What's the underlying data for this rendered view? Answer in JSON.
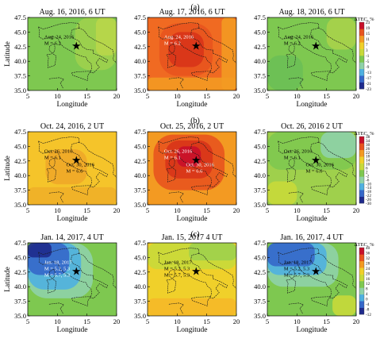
{
  "figure": {
    "rows": [
      {
        "label": "(a)",
        "colorbar": {
          "title": "ΔTEC, %",
          "ticks": [
            "23",
            "19",
            "15",
            "11",
            "7",
            "3",
            "-1",
            "-5",
            "-9",
            "-13",
            "-17",
            "-21",
            "-23"
          ],
          "min": -23,
          "max": 23,
          "colors": [
            "#1e2a8c",
            "#3567c9",
            "#4fb0e0",
            "#8fd2a8",
            "#7ec850",
            "#c8d93a",
            "#f0d02a",
            "#f39a22",
            "#e8541e",
            "#c8102a"
          ]
        },
        "panels": [
          {
            "title": "Aug. 16, 2016, 6 UT",
            "fill": "#7ec850",
            "regions": [
              {
                "color": "#9fd04c",
                "x0": 13,
                "x1": 20,
                "y0": 38.5,
                "y1": 47.5
              },
              {
                "color": "#b9d64a",
                "x0": 16.5,
                "x1": 20,
                "y0": 41,
                "y1": 47.5
              }
            ],
            "annotation": [
              "Aug. 24, 2016",
              "M = 6.2"
            ],
            "annotation_color": "#000000"
          },
          {
            "title": "Aug. 17, 2016, 6 UT",
            "fill": "#f06a22",
            "regions": [
              {
                "color": "#f39a22",
                "x0": 5,
                "x1": 20,
                "y0": 35,
                "y1": 37.2
              },
              {
                "color": "#f39a22",
                "x0": 17.5,
                "x1": 20,
                "y0": 35,
                "y1": 47.5
              },
              {
                "color": "#e8541e",
                "x0": 7,
                "x1": 16,
                "y0": 37.5,
                "y1": 46.5
              },
              {
                "color": "#d83418",
                "x0": 8.5,
                "x1": 14.5,
                "y0": 39,
                "y1": 45
              }
            ],
            "annotation": [
              "Aug. 24, 2016",
              "M = 6.2"
            ],
            "annotation_color": "#ffffff"
          },
          {
            "title": "Aug. 18, 2016, 6 UT",
            "fill": "#7ec850",
            "regions": [
              {
                "color": "#6bbf55",
                "x0": 5,
                "x1": 11,
                "y0": 35,
                "y1": 41
              },
              {
                "color": "#a8d24a",
                "x0": 15,
                "x1": 20,
                "y0": 42,
                "y1": 47.5
              }
            ],
            "annotation": [
              "Aug. 24, 2016",
              "M = 6.2"
            ],
            "annotation_color": "#000000"
          }
        ]
      },
      {
        "label": "(b)",
        "colorbar": {
          "title": "ΔTEC, %",
          "ticks": [
            "38",
            "34",
            "30",
            "26",
            "22",
            "18",
            "14",
            "10",
            "6",
            "2",
            "-2",
            "-6",
            "-10",
            "-14",
            "-18",
            "-22",
            "-26",
            "-30"
          ],
          "min": -30,
          "max": 38,
          "colors": [
            "#1e2a8c",
            "#3567c9",
            "#4fb0e0",
            "#8fd2a8",
            "#7ec850",
            "#c8d93a",
            "#f0d02a",
            "#f39a22",
            "#e8541e",
            "#c8102a"
          ]
        },
        "panels": [
          {
            "title": "Oct. 24, 2016, 2 UT",
            "fill": "#f5c42a",
            "regions": [
              {
                "color": "#f0b028",
                "x0": 5,
                "x1": 20,
                "y0": 35,
                "y1": 38
              },
              {
                "color": "#f0a828",
                "x0": 8,
                "x1": 15,
                "y0": 38.5,
                "y1": 44.5
              }
            ],
            "annotation": [
              "Oct. 26, 2016",
              "M = 6.1",
              "Oct. 30, 2016",
              "M = 6.6"
            ],
            "annotation_color": "#000000"
          },
          {
            "title": "Oct. 25, 2016, 2 UT",
            "fill": "#f39a22",
            "regions": [
              {
                "color": "#e8541e",
                "x0": 6,
                "x1": 18,
                "y0": 37.5,
                "y1": 47
              },
              {
                "color": "#d83418",
                "x0": 8,
                "x1": 16,
                "y0": 39.5,
                "y1": 46
              },
              {
                "color": "#c8102a",
                "x0": 10,
                "x1": 14,
                "y0": 41.5,
                "y1": 45
              }
            ],
            "annotation": [
              "Oct. 26, 2016",
              "M = 6.1",
              "Oct. 30, 2016",
              "M = 6.6"
            ],
            "annotation_color": "#ffffff"
          },
          {
            "title": "Oct. 26, 2016 2 UT",
            "fill": "#9fd04c",
            "regions": [
              {
                "color": "#7ec850",
                "x0": 5,
                "x1": 20,
                "y0": 41,
                "y1": 47.5
              },
              {
                "color": "#8fd2a8",
                "x0": 14,
                "x1": 20,
                "y0": 43,
                "y1": 47.5
              },
              {
                "color": "#c8d93a",
                "x0": 5,
                "x1": 10,
                "y0": 35,
                "y1": 39
              }
            ],
            "annotation": [
              "Oct. 26, 2016",
              "M = 6.1",
              "Oct. 30, 2016",
              "M = 6.6"
            ],
            "annotation_color": "#000000"
          }
        ]
      },
      {
        "label": "(c)",
        "colorbar": {
          "title": "ΔTEC, %",
          "ticks": [
            "40",
            "36",
            "32",
            "28",
            "24",
            "20",
            "16",
            "12",
            "8",
            "4",
            "0",
            "-4",
            "-8",
            "-12"
          ],
          "min": -12,
          "max": 40,
          "colors": [
            "#1e2a8c",
            "#3567c9",
            "#4fb0e0",
            "#8fd2a8",
            "#7ec850",
            "#c8d93a",
            "#f0d02a",
            "#f39a22",
            "#e8541e",
            "#c8102a"
          ]
        },
        "panels": [
          {
            "title": "Jan. 14, 2017, 4 UT",
            "fill": "#7ec850",
            "regions": [
              {
                "color": "#8fd2a8",
                "x0": 5,
                "x1": 16,
                "y0": 38,
                "y1": 47.5
              },
              {
                "color": "#4fb0e0",
                "x0": 5,
                "x1": 14,
                "y0": 39.5,
                "y1": 47.5
              },
              {
                "color": "#3567c9",
                "x0": 5,
                "x1": 12,
                "y0": 42,
                "y1": 47.5
              },
              {
                "color": "#1e2a8c",
                "x0": 5,
                "x1": 9,
                "y0": 45,
                "y1": 47.5
              }
            ],
            "annotation": [
              "Jan. 18, 2017",
              "M = 5.2, 5.3",
              "M = 5.7, 5.3"
            ],
            "annotation_color": "#ffffff"
          },
          {
            "title": "Jan. 15, 2017 4 UT",
            "fill": "#f0d02a",
            "regions": [
              {
                "color": "#c8d93a",
                "x0": 5,
                "x1": 20,
                "y0": 43,
                "y1": 47.5
              },
              {
                "color": "#9fd04c",
                "x0": 12,
                "x1": 20,
                "y0": 44.5,
                "y1": 47.5
              },
              {
                "color": "#f5b828",
                "x0": 5,
                "x1": 20,
                "y0": 35,
                "y1": 38
              }
            ],
            "annotation": [
              "Jan. 18, 2017",
              "M = 5.2, 5.3",
              "M = 5.7, 5.3"
            ],
            "annotation_color": "#000000"
          },
          {
            "title": "Jan. 16, 2017, 4 UT",
            "fill": "#7ec850",
            "regions": [
              {
                "color": "#8fd2a8",
                "x0": 5,
                "x1": 17,
                "y0": 40,
                "y1": 47.5
              },
              {
                "color": "#4fb0e0",
                "x0": 5,
                "x1": 15,
                "y0": 42,
                "y1": 47.5
              },
              {
                "color": "#3567c9",
                "x0": 5,
                "x1": 13,
                "y0": 43.5,
                "y1": 47.5
              },
              {
                "color": "#c8d93a",
                "x0": 16,
                "x1": 20,
                "y0": 35,
                "y1": 38.5
              }
            ],
            "annotation": [
              "Jan. 18, 2017",
              "M = 5.2, 5.3",
              "M = 5.7, 5.3"
            ],
            "annotation_color": "#000000"
          }
        ]
      }
    ],
    "axes": {
      "xlabel": "Longitude",
      "ylabel": "Latitude",
      "xlim": [
        5,
        20
      ],
      "ylim": [
        35,
        47.5
      ],
      "xticks": [
        5,
        10,
        15,
        20
      ],
      "yticks": [
        35.0,
        37.5,
        40.0,
        42.5,
        45.0,
        47.5
      ]
    },
    "epicenter": {
      "lon": 13.2,
      "lat": 42.7,
      "marker": "★"
    }
  },
  "chart_data": {
    "type": "heatmap",
    "xlabel": "Longitude",
    "ylabel": "Latitude",
    "xlim": [
      5,
      20
    ],
    "ylim": [
      35,
      47.5
    ],
    "colorbar_title": "ΔTEC, %",
    "panels": [
      "Aug. 16, 2016, 6 UT",
      "Aug. 17, 2016, 6 UT",
      "Aug. 18, 2016, 6 UT",
      "Oct. 24, 2016, 2 UT",
      "Oct. 25, 2016, 2 UT",
      "Oct. 26, 2016 2 UT",
      "Jan. 14, 2017, 4 UT",
      "Jan. 15, 2017 4 UT",
      "Jan. 16, 2017, 4 UT"
    ]
  }
}
